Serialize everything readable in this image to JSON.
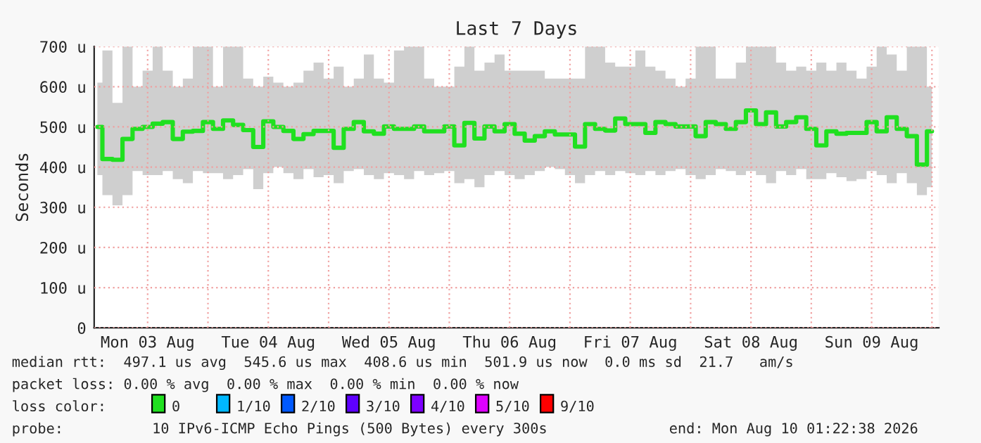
{
  "chart_data": {
    "type": "step",
    "title": "Last 7 Days",
    "ylabel": "Seconds",
    "x": [
      "2026-08-03T02:00",
      "2026-08-03T04:00",
      "2026-08-03T06:00",
      "2026-08-03T08:00",
      "2026-08-03T10:00",
      "2026-08-03T12:00",
      "2026-08-03T14:00",
      "2026-08-03T16:00",
      "2026-08-03T18:00",
      "2026-08-03T20:00",
      "2026-08-03T22:00",
      "2026-08-04T00:00",
      "2026-08-04T02:00",
      "2026-08-04T04:00",
      "2026-08-04T06:00",
      "2026-08-04T08:00",
      "2026-08-04T10:00",
      "2026-08-04T12:00",
      "2026-08-04T14:00",
      "2026-08-04T16:00",
      "2026-08-04T18:00",
      "2026-08-04T20:00",
      "2026-08-04T22:00",
      "2026-08-05T00:00",
      "2026-08-05T02:00",
      "2026-08-05T04:00",
      "2026-08-05T06:00",
      "2026-08-05T08:00",
      "2026-08-05T10:00",
      "2026-08-05T12:00",
      "2026-08-05T14:00",
      "2026-08-05T16:00",
      "2026-08-05T18:00",
      "2026-08-05T20:00",
      "2026-08-05T22:00",
      "2026-08-06T00:00",
      "2026-08-06T02:00",
      "2026-08-06T04:00",
      "2026-08-06T06:00",
      "2026-08-06T08:00",
      "2026-08-06T10:00",
      "2026-08-06T12:00",
      "2026-08-06T14:00",
      "2026-08-06T16:00",
      "2026-08-06T18:00",
      "2026-08-06T20:00",
      "2026-08-06T22:00",
      "2026-08-07T00:00",
      "2026-08-07T02:00",
      "2026-08-07T04:00",
      "2026-08-07T06:00",
      "2026-08-07T08:00",
      "2026-08-07T10:00",
      "2026-08-07T12:00",
      "2026-08-07T14:00",
      "2026-08-07T16:00",
      "2026-08-07T18:00",
      "2026-08-07T20:00",
      "2026-08-07T22:00",
      "2026-08-08T00:00",
      "2026-08-08T02:00",
      "2026-08-08T04:00",
      "2026-08-08T06:00",
      "2026-08-08T08:00",
      "2026-08-08T10:00",
      "2026-08-08T12:00",
      "2026-08-08T14:00",
      "2026-08-08T16:00",
      "2026-08-08T18:00",
      "2026-08-08T20:00",
      "2026-08-08T22:00",
      "2026-08-09T00:00",
      "2026-08-09T02:00",
      "2026-08-09T04:00",
      "2026-08-09T06:00",
      "2026-08-09T08:00",
      "2026-08-09T10:00",
      "2026-08-09T12:00",
      "2026-08-09T14:00",
      "2026-08-09T16:00",
      "2026-08-09T18:00",
      "2026-08-09T20:00",
      "2026-08-09T22:00",
      "2026-08-10T00:00"
    ],
    "series": [
      {
        "color": "#20e020",
        "values": [
          500,
          420,
          418,
          470,
          495,
          500,
          508,
          512,
          470,
          488,
          490,
          512,
          495,
          516,
          505,
          492,
          450,
          514,
          500,
          490,
          470,
          482,
          490,
          490,
          448,
          495,
          512,
          489,
          483,
          501,
          495,
          495,
          501,
          489,
          489,
          501,
          454,
          510,
          471,
          501,
          489,
          507,
          483,
          466,
          477,
          489,
          481,
          481,
          451,
          507,
          495,
          491,
          521,
          507,
          507,
          485,
          512,
          507,
          501,
          501,
          477,
          512,
          507,
          495,
          512,
          541,
          507,
          536,
          501,
          512,
          524,
          495,
          454,
          489,
          483,
          485,
          485,
          512,
          489,
          524,
          495,
          477,
          406,
          489
        ],
        "upper": [
          610,
          690,
          560,
          700,
          600,
          640,
          700,
          640,
          600,
          620,
          700,
          700,
          600,
          700,
          700,
          620,
          600,
          625,
          610,
          600,
          610,
          640,
          660,
          620,
          650,
          600,
          620,
          680,
          620,
          610,
          690,
          700,
          700,
          620,
          600,
          600,
          650,
          700,
          640,
          660,
          680,
          640,
          640,
          640,
          640,
          620,
          620,
          620,
          620,
          700,
          700,
          660,
          650,
          650,
          690,
          650,
          640,
          620,
          600,
          620,
          700,
          700,
          620,
          620,
          660,
          700,
          700,
          700,
          660,
          640,
          650,
          640,
          660,
          640,
          660,
          640,
          620,
          650,
          700,
          680,
          640,
          700,
          700,
          600
        ],
        "lower": [
          380,
          330,
          305,
          330,
          390,
          380,
          380,
          390,
          370,
          360,
          390,
          385,
          385,
          370,
          380,
          395,
          345,
          385,
          400,
          385,
          370,
          395,
          375,
          380,
          360,
          390,
          395,
          380,
          370,
          385,
          380,
          370,
          390,
          380,
          385,
          390,
          360,
          370,
          350,
          380,
          390,
          380,
          370,
          380,
          390,
          400,
          395,
          380,
          360,
          380,
          390,
          380,
          390,
          385,
          380,
          390,
          380,
          390,
          395,
          380,
          370,
          380,
          395,
          390,
          380,
          390,
          380,
          360,
          390,
          380,
          395,
          370,
          370,
          385,
          375,
          365,
          370,
          390,
          380,
          360,
          385,
          360,
          330,
          350
        ]
      }
    ],
    "xlim": [
      "2026-08-03T01:22",
      "2026-08-10T01:22"
    ],
    "xticks": [
      {
        "value": "2026-08-03T12:00",
        "label": "Mon 03 Aug"
      },
      {
        "value": "2026-08-04T00:00",
        "label": null
      },
      {
        "value": "2026-08-04T12:00",
        "label": "Tue 04 Aug"
      },
      {
        "value": "2026-08-05T00:00",
        "label": null
      },
      {
        "value": "2026-08-05T12:00",
        "label": "Wed 05 Aug"
      },
      {
        "value": "2026-08-06T00:00",
        "label": null
      },
      {
        "value": "2026-08-06T12:00",
        "label": "Thu 06 Aug"
      },
      {
        "value": "2026-08-07T00:00",
        "label": null
      },
      {
        "value": "2026-08-07T12:00",
        "label": "Fri 07 Aug"
      },
      {
        "value": "2026-08-08T00:00",
        "label": null
      },
      {
        "value": "2026-08-08T12:00",
        "label": "Sat 08 Aug"
      },
      {
        "value": "2026-08-09T00:00",
        "label": null
      },
      {
        "value": "2026-08-09T12:00",
        "label": "Sun 09 Aug"
      },
      {
        "value": "2026-08-10T00:00",
        "label": null
      }
    ],
    "ylim": [
      0,
      700
    ],
    "yticks": [
      0,
      {
        "value": 100,
        "label": "100 u"
      },
      {
        "value": 200,
        "label": "200 u"
      },
      {
        "value": 300,
        "label": "300 u"
      },
      {
        "value": 400,
        "label": "400 u"
      },
      {
        "value": 500,
        "label": "500 u"
      },
      {
        "value": 600,
        "label": "600 u"
      },
      {
        "value": 700,
        "label": "700 u"
      }
    ],
    "grid": true,
    "annotations": [
      "median rtt:  497.1 us avg  545.6 us max  408.6 us min  501.9 us now  0.0 ms sd  21.7   am/s",
      "packet loss: 0.00 % avg  0.00 % max  0.00 % min  0.00 % now",
      "loss color:",
      "0",
      "1/10",
      "2/10",
      "3/10",
      "4/10",
      "5/10",
      "9/10",
      "probe:",
      "10 IPv6-ICMP Echo Pings (500 Bytes) every 300s",
      "end: Mon Aug 10 01:22:38 2026"
    ]
  }
}
